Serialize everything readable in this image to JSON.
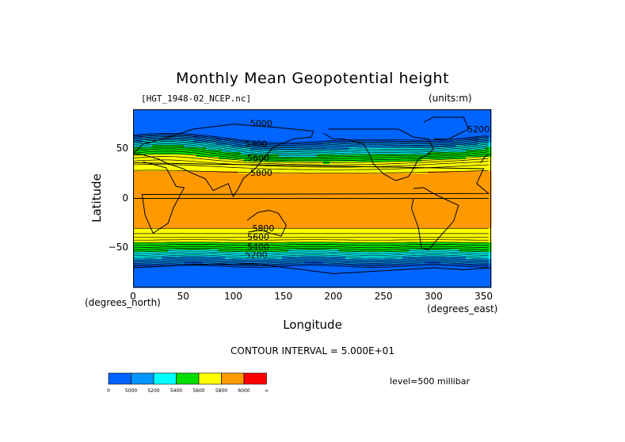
{
  "title": "Monthly Mean Geopotential height",
  "source_file": "[HGT_1948-02_NCEP.nc]",
  "units_label": "(units:m)",
  "chart_data": {
    "type": "heatmap",
    "variable": "Geopotential height",
    "level": "500 millibar",
    "xlabel": "Longitude",
    "ylabel": "Latitude",
    "x_unit_label": "(degrees_east)",
    "y_unit_label": "(degrees_north)",
    "xlim": [
      0,
      357.5
    ],
    "ylim": [
      -90,
      90
    ],
    "x_ticks": [
      0,
      50,
      100,
      150,
      200,
      250,
      300,
      350
    ],
    "y_ticks": [
      50,
      0,
      -50
    ],
    "contour_interval_text": "CONTOUR INTERVAL = 5.000E+01",
    "contour_labels": [
      {
        "text": "5000",
        "lon": 128,
        "lat": 73
      },
      {
        "text": "5400",
        "lon": 123,
        "lat": 52
      },
      {
        "text": "5600",
        "lon": 125,
        "lat": 38
      },
      {
        "text": "5800",
        "lon": 128,
        "lat": 23
      },
      {
        "text": "5800",
        "lon": 130,
        "lat": -33
      },
      {
        "text": "5600",
        "lon": 125,
        "lat": -42
      },
      {
        "text": "5400",
        "lon": 125,
        "lat": -52
      },
      {
        "text": "5200",
        "lon": 123,
        "lat": -60
      },
      {
        "text": "5200",
        "lon": 345,
        "lat": 67
      }
    ],
    "legend": {
      "levels": [
        "0",
        "5000",
        "5200",
        "5400",
        "5600",
        "5800",
        "6000",
        "∞"
      ],
      "colors": [
        "#0064ff",
        "#0096ff",
        "#00ffff",
        "#00dd00",
        "#ffff00",
        "#ff9900",
        "#ff0000"
      ]
    },
    "level_text": "level=500 millibar"
  }
}
